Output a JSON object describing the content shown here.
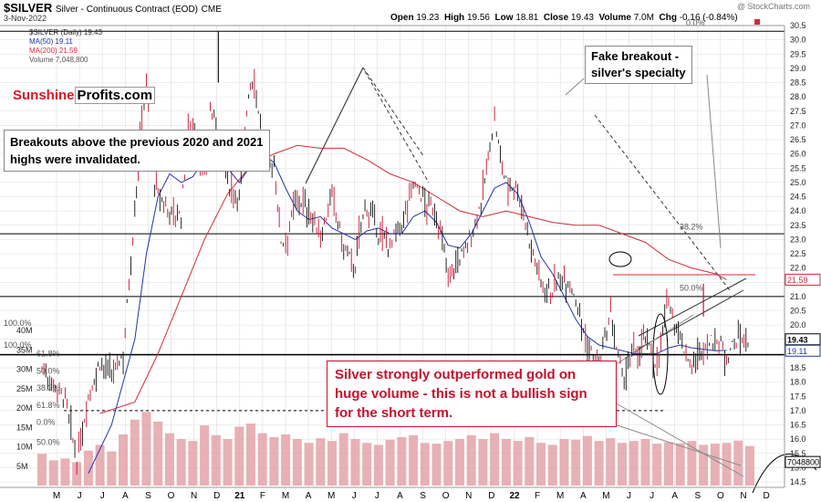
{
  "header": {
    "symbol": "$SILVER",
    "name": "Silver - Continuous Contract (EOD)",
    "exchange": "CME",
    "date": "3-Nov-2022",
    "open_label": "Open",
    "open": "19.23",
    "high_label": "High",
    "high": "19.56",
    "low_label": "Low",
    "low": "18.81",
    "close_label": "Close",
    "close": "19.43",
    "volume_label": "Volume",
    "volume": "7.0M",
    "chg_label": "Chg",
    "chg": "-0.16 (-0.84%)",
    "watermark": "@ StockCharts.com"
  },
  "legend": {
    "price": "$SILVER (Daily) 19.43",
    "ma50": "MA(50) 19.11",
    "ma200": "MA(200) 21.59",
    "volume": "Volume 7,048,800"
  },
  "brand": {
    "part1": "Sunshine",
    "part2": "Profits.com"
  },
  "annotations": {
    "note1": "Breakouts above the previous 2020 and 2021 highs were invalidated.",
    "note2_line1": "Fake breakout -",
    "note2_line2": "silver's specialty",
    "note3": "Silver strongly outperformed gold on huge volume - this is not a bullish sign for the short term."
  },
  "colors": {
    "up": "#111111",
    "down": "#c8102e",
    "ma50": "#2233aa",
    "ma200": "#d42a3a",
    "vol": "#e3a3a8",
    "grid": "#dddddd"
  },
  "chart_data": {
    "type": "line",
    "title": "$SILVER",
    "xlabel": "",
    "ylabel": "",
    "ylim": [
      14.5,
      30.5
    ],
    "y_ticks": [
      "14.5",
      "15.0",
      "15.5",
      "16.0",
      "16.5",
      "17.0",
      "17.5",
      "18.0",
      "18.5",
      "19.0",
      "19.5",
      "20.0",
      "20.5",
      "21.0",
      "21.5",
      "22.0",
      "22.5",
      "23.0",
      "23.5",
      "24.0",
      "24.5",
      "25.0",
      "25.5",
      "26.0",
      "26.5",
      "27.0",
      "27.5",
      "28.0",
      "28.5",
      "29.0",
      "29.5",
      "30.0",
      "30.5"
    ],
    "months": [
      "M",
      "J",
      "J",
      "A",
      "S",
      "O",
      "N",
      "D",
      "21",
      "F",
      "M",
      "A",
      "M",
      "J",
      "J",
      "A",
      "S",
      "O",
      "N",
      "D",
      "22",
      "F",
      "M",
      "A",
      "M",
      "J",
      "J",
      "A",
      "S",
      "O",
      "N",
      "D"
    ],
    "close_series": [
      [
        0,
        18.5
      ],
      [
        2,
        17.4
      ],
      [
        3,
        15.2
      ],
      [
        4,
        17.5
      ],
      [
        5,
        18.7
      ],
      [
        6,
        18.2
      ],
      [
        7,
        19.0
      ],
      [
        8,
        24.0
      ],
      [
        8.6,
        27.5
      ],
      [
        9,
        28.5
      ],
      [
        9.7,
        25.0
      ],
      [
        10,
        24.5
      ],
      [
        11,
        24.0
      ],
      [
        12,
        23.8
      ],
      [
        12.6,
        27.0
      ],
      [
        13,
        27.2
      ],
      [
        13.3,
        26.3
      ],
      [
        14,
        25.2
      ],
      [
        14.5,
        27.5
      ],
      [
        15,
        27.0
      ],
      [
        16,
        25.0
      ],
      [
        17,
        24.5
      ],
      [
        17.8,
        28.2
      ],
      [
        18.3,
        28.7
      ],
      [
        19,
        26.5
      ],
      [
        19.3,
        25.6
      ],
      [
        20,
        25.6
      ],
      [
        20.6,
        23.0
      ],
      [
        21,
        23.0
      ],
      [
        22,
        24.5
      ],
      [
        23,
        24.0
      ],
      [
        24,
        23.1
      ],
      [
        25,
        24.5
      ],
      [
        26,
        22.7
      ],
      [
        27,
        22.0
      ],
      [
        27.5,
        23.6
      ],
      [
        28,
        24.2
      ],
      [
        29,
        23.2
      ],
      [
        30,
        22.8
      ],
      [
        31,
        23.5
      ],
      [
        32,
        25.0
      ],
      [
        33,
        24.3
      ],
      [
        34,
        23.9
      ],
      [
        35,
        21.8
      ],
      [
        36,
        22.3
      ],
      [
        37,
        23.1
      ],
      [
        38,
        24.6
      ],
      [
        38.6,
        26.3
      ],
      [
        39,
        27.2
      ],
      [
        39.5,
        25.8
      ],
      [
        40,
        25.0
      ],
      [
        41,
        24.8
      ],
      [
        42,
        23.0
      ],
      [
        43,
        21.5
      ],
      [
        44,
        21.2
      ],
      [
        45,
        21.8
      ],
      [
        46,
        21.0
      ],
      [
        47,
        19.2
      ],
      [
        48,
        18.5
      ],
      [
        49,
        20.3
      ],
      [
        50,
        18.1
      ],
      [
        51,
        19.0
      ],
      [
        52,
        19.5
      ],
      [
        53,
        18.6
      ],
      [
        54,
        20.9
      ],
      [
        55,
        19.5
      ],
      [
        56,
        18.5
      ],
      [
        57,
        19.2
      ],
      [
        58,
        19.5
      ],
      [
        59,
        19.0
      ],
      [
        60,
        19.5
      ],
      [
        61,
        19.43
      ]
    ],
    "ma50_series": [
      [
        4,
        14.8
      ],
      [
        6,
        16.5
      ],
      [
        8,
        19.5
      ],
      [
        9,
        22.5
      ],
      [
        10,
        24.5
      ],
      [
        11,
        25.3
      ],
      [
        12,
        25.0
      ],
      [
        13,
        25.2
      ],
      [
        14,
        25.8
      ],
      [
        15,
        26.0
      ],
      [
        16,
        25.5
      ],
      [
        17,
        25.0
      ],
      [
        18,
        25.6
      ],
      [
        19,
        26.0
      ],
      [
        20,
        25.7
      ],
      [
        21,
        24.8
      ],
      [
        22,
        24.0
      ],
      [
        23,
        23.7
      ],
      [
        24,
        23.8
      ],
      [
        25,
        23.4
      ],
      [
        26,
        23.2
      ],
      [
        27,
        23.0
      ],
      [
        28,
        23.3
      ],
      [
        29,
        23.4
      ],
      [
        30,
        23.2
      ],
      [
        31,
        23.2
      ],
      [
        32,
        23.8
      ],
      [
        33,
        24.0
      ],
      [
        34,
        23.6
      ],
      [
        35,
        22.8
      ],
      [
        36,
        22.7
      ],
      [
        37,
        23.2
      ],
      [
        38,
        24.0
      ],
      [
        39,
        24.8
      ],
      [
        40,
        25.0
      ],
      [
        41,
        24.6
      ],
      [
        42,
        23.6
      ],
      [
        43,
        22.4
      ],
      [
        44,
        21.8
      ],
      [
        45,
        21.0
      ],
      [
        46,
        20.2
      ],
      [
        47,
        19.6
      ],
      [
        48,
        19.3
      ],
      [
        49,
        19.2
      ],
      [
        50,
        19.1
      ],
      [
        51,
        19.0
      ],
      [
        52,
        19.0
      ],
      [
        53,
        19.0
      ],
      [
        54,
        19.2
      ],
      [
        55,
        19.3
      ],
      [
        56,
        19.2
      ],
      [
        57,
        19.15
      ],
      [
        58,
        19.1
      ],
      [
        59,
        19.11
      ]
    ],
    "ma200_series": [
      [
        5,
        16.9
      ],
      [
        8,
        17.3
      ],
      [
        10,
        19.0
      ],
      [
        12,
        21.0
      ],
      [
        14,
        23.0
      ],
      [
        16,
        24.6
      ],
      [
        18,
        25.6
      ],
      [
        20,
        26.0
      ],
      [
        22,
        26.3
      ],
      [
        24,
        26.2
      ],
      [
        26,
        26.2
      ],
      [
        28,
        25.8
      ],
      [
        30,
        25.3
      ],
      [
        32,
        25.0
      ],
      [
        34,
        24.5
      ],
      [
        36,
        24.0
      ],
      [
        38,
        23.8
      ],
      [
        40,
        24.0
      ],
      [
        42,
        23.8
      ],
      [
        44,
        23.6
      ],
      [
        46,
        23.5
      ],
      [
        48,
        23.5
      ],
      [
        50,
        23.2
      ],
      [
        52,
        22.9
      ],
      [
        54,
        22.3
      ],
      [
        56,
        22.0
      ],
      [
        58,
        21.8
      ],
      [
        59,
        21.59
      ]
    ],
    "volume_bars": [
      [
        0,
        8.2
      ],
      [
        1,
        6.5
      ],
      [
        2,
        7.0
      ],
      [
        3,
        6.0
      ],
      [
        4,
        9.0
      ],
      [
        5,
        10.5
      ],
      [
        6,
        8.8
      ],
      [
        7,
        13.2
      ],
      [
        8,
        17.0
      ],
      [
        9,
        19.0
      ],
      [
        10,
        16.5
      ],
      [
        11,
        13.5
      ],
      [
        12,
        12.0
      ],
      [
        13,
        11.5
      ],
      [
        14,
        15.5
      ],
      [
        15,
        13.0
      ],
      [
        16,
        12.0
      ],
      [
        17,
        15.2
      ],
      [
        18,
        16.0
      ],
      [
        19,
        13.5
      ],
      [
        20,
        12.5
      ],
      [
        21,
        13.2
      ],
      [
        22,
        12.0
      ],
      [
        23,
        11.0
      ],
      [
        24,
        12.2
      ],
      [
        25,
        11.5
      ],
      [
        26,
        13.5
      ],
      [
        27,
        12.0
      ],
      [
        28,
        11.0
      ],
      [
        29,
        10.5
      ],
      [
        30,
        11.8
      ],
      [
        31,
        12.5
      ],
      [
        32,
        13.0
      ],
      [
        33,
        11.0
      ],
      [
        34,
        10.8
      ],
      [
        35,
        11.5
      ],
      [
        36,
        12.0
      ],
      [
        37,
        13.0
      ],
      [
        38,
        12.0
      ],
      [
        39,
        13.5
      ],
      [
        40,
        12.0
      ],
      [
        41,
        11.5
      ],
      [
        42,
        12.5
      ],
      [
        43,
        11.0
      ],
      [
        44,
        10.5
      ],
      [
        45,
        12.0
      ],
      [
        46,
        11.8
      ],
      [
        47,
        12.8
      ],
      [
        48,
        11.5
      ],
      [
        49,
        12.2
      ],
      [
        50,
        11.0
      ],
      [
        51,
        11.5
      ],
      [
        52,
        12.0
      ],
      [
        53,
        10.8
      ],
      [
        54,
        11.2
      ],
      [
        55,
        10.9
      ],
      [
        56,
        11.5
      ],
      [
        57,
        10.5
      ],
      [
        58,
        10.8
      ],
      [
        59,
        11.0
      ],
      [
        60,
        11.6
      ],
      [
        61,
        10.2
      ]
    ],
    "vol_axis_labels": [
      "40M",
      "35M",
      "30M",
      "25M",
      "20M",
      "15M",
      "10M",
      "5M"
    ],
    "horizontal_lines": [
      30.3,
      23.2,
      21.0,
      18.96,
      17.0
    ],
    "fib_labels": [
      {
        "text": "38.2%",
        "y": 23.35
      },
      {
        "text": "50.0%",
        "y": 21.2
      },
      {
        "text": "0.0%",
        "y": 30.5
      },
      {
        "text": "100.0%",
        "y": 19.98
      },
      {
        "text": "100.0%",
        "y": 19.2
      },
      {
        "text": "61.8%",
        "y": 18.9
      },
      {
        "text": "50.0%",
        "y": 18.3
      },
      {
        "text": "38.2%",
        "y": 17.7
      },
      {
        "text": "61.8%",
        "y": 17.1
      },
      {
        "text": "0.0%",
        "y": 16.5
      },
      {
        "text": "50.0%",
        "y": 15.8
      }
    ],
    "right_badges": [
      {
        "text": "21.59",
        "y": 21.59,
        "color": "#d42a3a"
      },
      {
        "text": "19.43",
        "y": 19.5,
        "color": "#000000"
      },
      {
        "text": "19.11",
        "y": 19.1,
        "color": "#2233aa"
      },
      {
        "text": "7048800",
        "y": 15.2,
        "color": "#000000"
      }
    ]
  }
}
